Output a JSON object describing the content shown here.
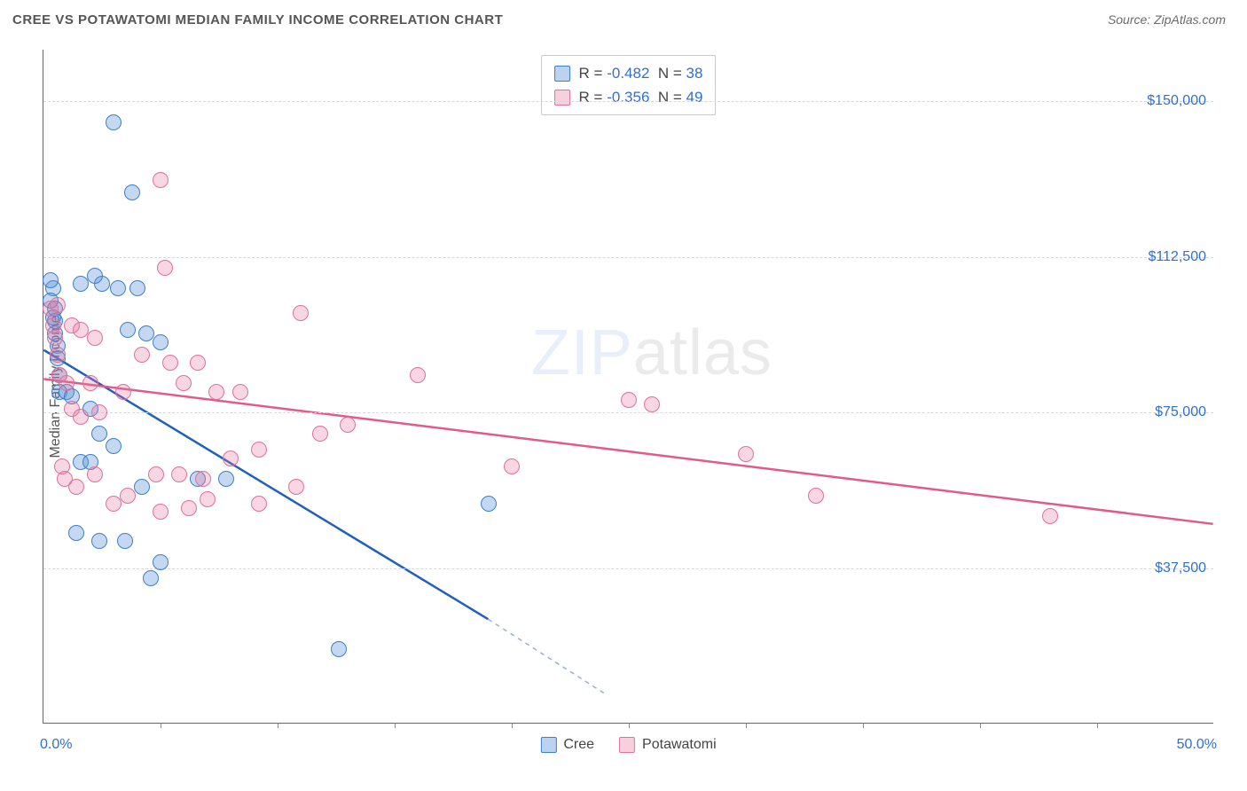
{
  "title": "CREE VS POTAWATOMI MEDIAN FAMILY INCOME CORRELATION CHART",
  "source": "Source: ZipAtlas.com",
  "watermark": {
    "left": "ZIP",
    "right": "atlas"
  },
  "chart": {
    "type": "scatter",
    "ylabel": "Median Family Income",
    "xlim": [
      0,
      50
    ],
    "ylim": [
      0,
      162500
    ],
    "x_ticks": [
      5,
      10,
      15,
      20,
      25,
      30,
      35,
      40,
      45
    ],
    "x_tick_labels": {
      "0": "0.0%",
      "50": "50.0%"
    },
    "y_gridlines": [
      37500,
      75000,
      112500,
      150000
    ],
    "y_tick_labels": {
      "37500": "$37,500",
      "75000": "$75,000",
      "112500": "$112,500",
      "150000": "$150,000"
    },
    "grid_color": "#d8d8d8",
    "background_color": "#ffffff",
    "point_radius": 9,
    "series": [
      {
        "name": "Cree",
        "color_fill": "rgba(86,145,214,.35)",
        "color_stroke": "#3f7ec9",
        "correlation": {
          "R": "-0.482",
          "N": "38"
        },
        "trend": {
          "x1": 0,
          "y1": 90000,
          "x2": 19,
          "y2": 25000,
          "x2_ext": 24,
          "y2_ext": 7000,
          "color": "#1f5fbf",
          "width": 2.5,
          "dash_ext": "5,5"
        },
        "points": [
          [
            0.4,
            105000
          ],
          [
            0.5,
            100000
          ],
          [
            0.5,
            97000
          ],
          [
            0.5,
            94000
          ],
          [
            0.6,
            91000
          ],
          [
            0.6,
            88000
          ],
          [
            0.7,
            84000
          ],
          [
            0.7,
            80000
          ],
          [
            0.3,
            107000
          ],
          [
            0.3,
            102000
          ],
          [
            0.4,
            98000
          ],
          [
            3.0,
            145000
          ],
          [
            2.5,
            106000
          ],
          [
            3.2,
            105000
          ],
          [
            4.0,
            105000
          ],
          [
            3.8,
            128000
          ],
          [
            1.6,
            106000
          ],
          [
            2.2,
            108000
          ],
          [
            1.0,
            80000
          ],
          [
            1.2,
            79000
          ],
          [
            2.0,
            76000
          ],
          [
            2.4,
            70000
          ],
          [
            3.6,
            95000
          ],
          [
            4.4,
            94000
          ],
          [
            5.0,
            92000
          ],
          [
            1.6,
            63000
          ],
          [
            2.0,
            63000
          ],
          [
            3.0,
            67000
          ],
          [
            4.2,
            57000
          ],
          [
            6.6,
            59000
          ],
          [
            1.4,
            46000
          ],
          [
            2.4,
            44000
          ],
          [
            3.5,
            44000
          ],
          [
            5.0,
            39000
          ],
          [
            4.6,
            35000
          ],
          [
            7.8,
            59000
          ],
          [
            12.6,
            18000
          ],
          [
            19.0,
            53000
          ]
        ]
      },
      {
        "name": "Potawatomi",
        "color_fill": "rgba(232,120,160,.30)",
        "color_stroke": "#df6f9f",
        "correlation": {
          "R": "-0.356",
          "N": "49"
        },
        "trend": {
          "x1": 0,
          "y1": 83000,
          "x2": 50,
          "y2": 48000,
          "color": "#e05a8c",
          "width": 2.5
        },
        "points": [
          [
            0.3,
            100000
          ],
          [
            0.4,
            96000
          ],
          [
            0.5,
            93000
          ],
          [
            0.6,
            89000
          ],
          [
            0.6,
            101000
          ],
          [
            1.2,
            96000
          ],
          [
            1.6,
            95000
          ],
          [
            2.2,
            93000
          ],
          [
            2.0,
            82000
          ],
          [
            1.0,
            82000
          ],
          [
            0.7,
            84000
          ],
          [
            5.0,
            131000
          ],
          [
            5.2,
            110000
          ],
          [
            4.2,
            89000
          ],
          [
            5.4,
            87000
          ],
          [
            6.6,
            87000
          ],
          [
            3.4,
            80000
          ],
          [
            1.2,
            76000
          ],
          [
            1.6,
            74000
          ],
          [
            2.4,
            75000
          ],
          [
            11.0,
            99000
          ],
          [
            6.0,
            82000
          ],
          [
            7.4,
            80000
          ],
          [
            8.4,
            80000
          ],
          [
            4.8,
            60000
          ],
          [
            5.8,
            60000
          ],
          [
            6.8,
            59000
          ],
          [
            8.0,
            64000
          ],
          [
            9.2,
            66000
          ],
          [
            3.6,
            55000
          ],
          [
            5.0,
            51000
          ],
          [
            6.2,
            52000
          ],
          [
            7.0,
            54000
          ],
          [
            9.2,
            53000
          ],
          [
            10.8,
            57000
          ],
          [
            2.2,
            60000
          ],
          [
            3.0,
            53000
          ],
          [
            1.4,
            57000
          ],
          [
            0.8,
            62000
          ],
          [
            0.9,
            59000
          ],
          [
            11.8,
            70000
          ],
          [
            13.0,
            72000
          ],
          [
            16.0,
            84000
          ],
          [
            20.0,
            62000
          ],
          [
            25.0,
            78000
          ],
          [
            26.0,
            77000
          ],
          [
            30.0,
            65000
          ],
          [
            33.0,
            55000
          ],
          [
            43.0,
            50000
          ]
        ]
      }
    ],
    "legend": [
      {
        "label": "Cree",
        "class": "blue"
      },
      {
        "label": "Potawatomi",
        "class": "pink"
      }
    ]
  }
}
